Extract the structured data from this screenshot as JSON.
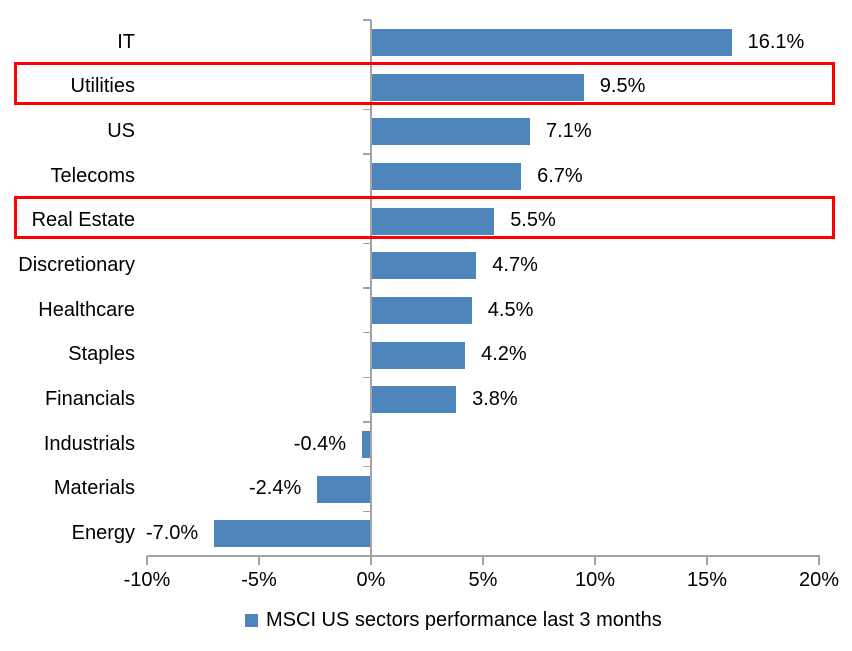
{
  "chart_data": {
    "type": "bar",
    "orientation": "horizontal",
    "title": "",
    "categories": [
      "IT",
      "Utilities",
      "US",
      "Telecoms",
      "Real Estate",
      "Discretionary",
      "Healthcare",
      "Staples",
      "Financials",
      "Industrials",
      "Materials",
      "Energy"
    ],
    "values": [
      16.1,
      9.5,
      7.1,
      6.7,
      5.5,
      4.7,
      4.5,
      4.2,
      3.8,
      -0.4,
      -2.4,
      -7.0
    ],
    "value_labels": [
      "16.1%",
      "9.5%",
      "7.1%",
      "6.7%",
      "5.5%",
      "4.7%",
      "4.5%",
      "4.2%",
      "3.8%",
      "-0.4%",
      "-2.4%",
      "-7.0%"
    ],
    "x_tick_labels": [
      "-10%",
      "-5%",
      "0%",
      "5%",
      "10%",
      "15%",
      "20%"
    ],
    "x_tick_values": [
      -10,
      -5,
      0,
      5,
      10,
      15,
      20
    ],
    "xlim": [
      -10,
      20
    ],
    "grid": false,
    "highlighted_categories": [
      "Utilities",
      "Real Estate"
    ],
    "legend": {
      "label": "MSCI US sectors performance last 3 months",
      "position": "bottom"
    },
    "colors": {
      "bar": "#4E86BC",
      "highlight_box": "#FF0000",
      "axis": "#A3A3A3",
      "text": "#000000",
      "background": "#FFFFFF"
    }
  }
}
